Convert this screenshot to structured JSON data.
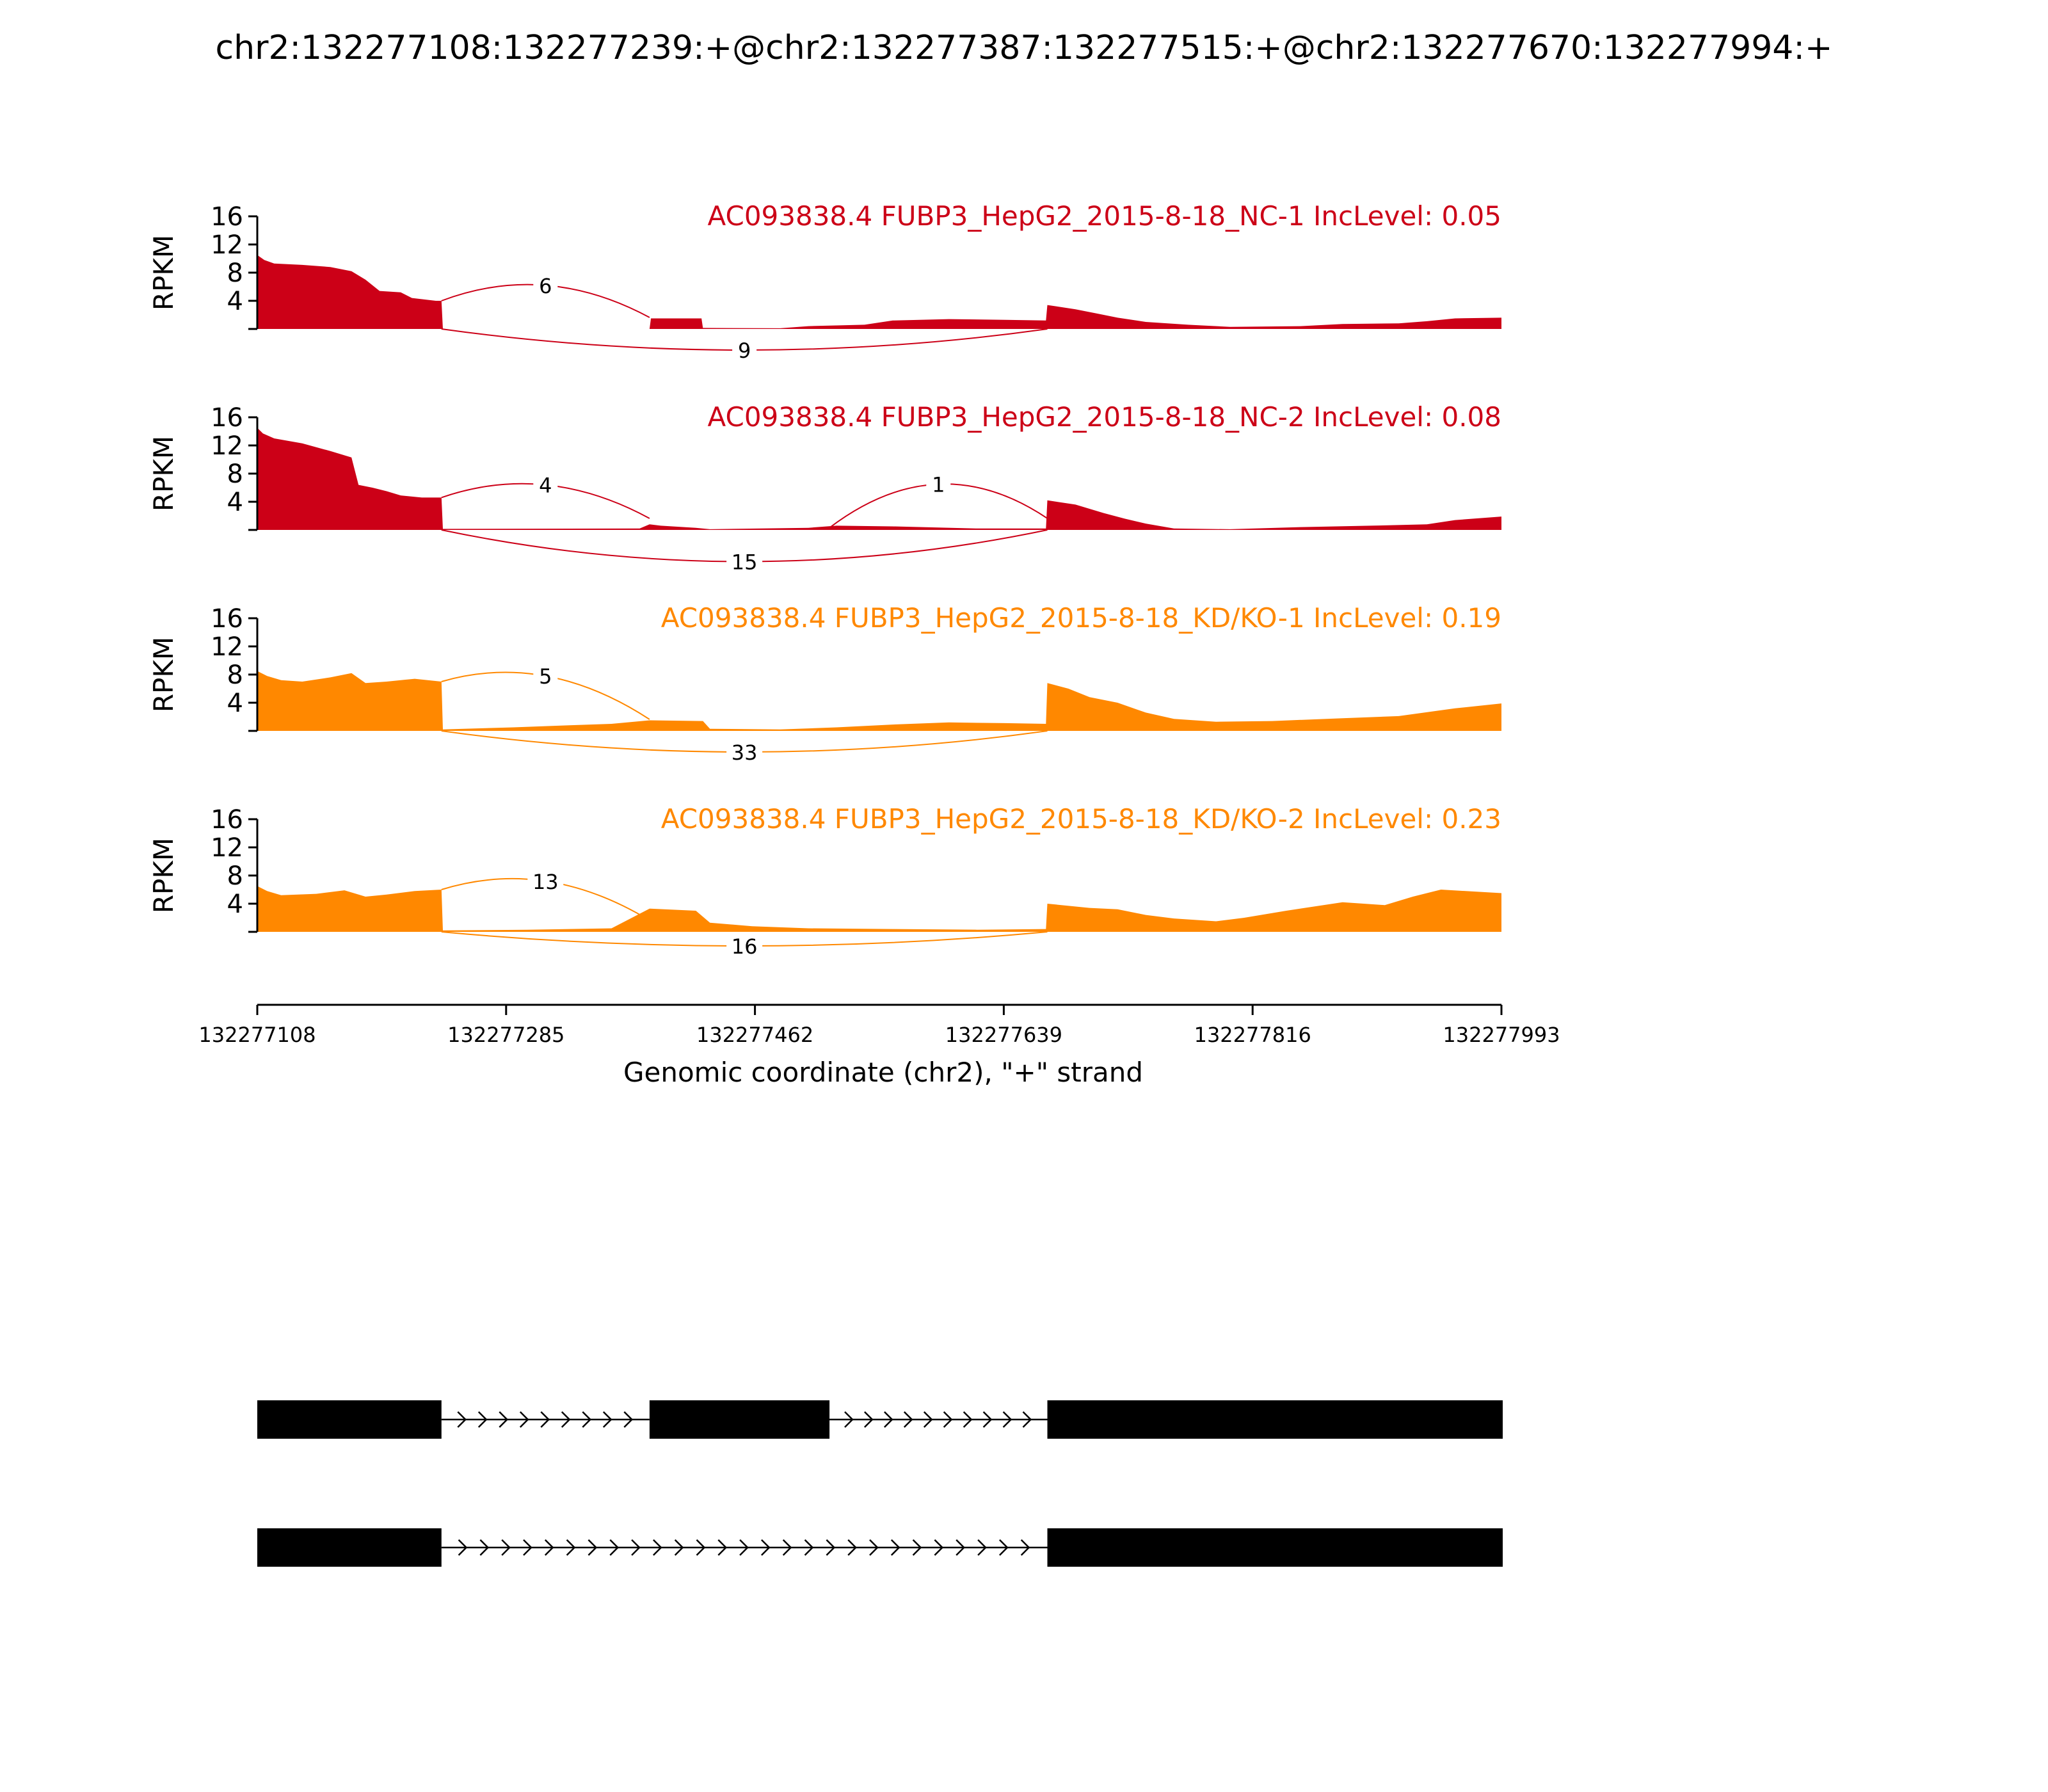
{
  "chart_data": {
    "type": "area",
    "title": "chr2:132277108:132277239:+@chr2:132277387:132277515:+@chr2:132277670:132277994:+",
    "ylabel": "RPKM",
    "xlabel": "Genomic coordinate (chr2), \"+\" strand",
    "xlim": [
      132277108,
      132277993
    ],
    "ylim": [
      0,
      16
    ],
    "yticks": [
      "4",
      "8",
      "12",
      "16"
    ],
    "xticks": [
      "132277108",
      "132277285",
      "132277462",
      "132277639",
      "132277816",
      "132277993"
    ],
    "colors": {
      "nc": "#cc0017",
      "kd": "#ff8800"
    },
    "tracks": [
      {
        "label": "AC093838.4 FUBP3_HepG2_2015-8-18_NC-1 IncLevel: 0.05",
        "group": "nc",
        "profile": [
          [
            132277108,
            10.5
          ],
          [
            132277113,
            9.8
          ],
          [
            132277120,
            9.3
          ],
          [
            132277140,
            9.1
          ],
          [
            132277160,
            8.8
          ],
          [
            132277175,
            8.2
          ],
          [
            132277185,
            7.0
          ],
          [
            132277195,
            5.4
          ],
          [
            132277210,
            5.2
          ],
          [
            132277218,
            4.4
          ],
          [
            132277235,
            4.0
          ],
          [
            132277239,
            4.0
          ],
          [
            132277240,
            0
          ],
          [
            132277387,
            0
          ],
          [
            132277388,
            1.5
          ],
          [
            132277424,
            1.5
          ],
          [
            132277425,
            0.15
          ],
          [
            132277480,
            0.1
          ],
          [
            132277500,
            0.4
          ],
          [
            132277540,
            0.6
          ],
          [
            132277560,
            1.2
          ],
          [
            132277600,
            1.4
          ],
          [
            132277640,
            1.3
          ],
          [
            132277669,
            1.2
          ],
          [
            132277670,
            3.4
          ],
          [
            132277690,
            2.8
          ],
          [
            132277705,
            2.2
          ],
          [
            132277720,
            1.6
          ],
          [
            132277740,
            1.0
          ],
          [
            132277770,
            0.6
          ],
          [
            132277800,
            0.3
          ],
          [
            132277850,
            0.4
          ],
          [
            132277880,
            0.7
          ],
          [
            132277920,
            0.8
          ],
          [
            132277940,
            1.1
          ],
          [
            132277960,
            1.5
          ],
          [
            132277993,
            1.6
          ]
        ],
        "junctions": [
          {
            "label": "6",
            "from": 132277239,
            "to": 132277387,
            "side": "above",
            "height": 6.2
          },
          {
            "label": "9",
            "from": 132277239,
            "to": 132277670,
            "side": "below",
            "height": 3.0
          }
        ]
      },
      {
        "label": "AC093838.4 FUBP3_HepG2_2015-8-18_NC-2 IncLevel: 0.08",
        "group": "nc",
        "profile": [
          [
            132277108,
            14.5
          ],
          [
            132277112,
            13.7
          ],
          [
            132277120,
            13.0
          ],
          [
            132277140,
            12.3
          ],
          [
            132277160,
            11.2
          ],
          [
            132277175,
            10.3
          ],
          [
            132277180,
            6.4
          ],
          [
            132277190,
            6.0
          ],
          [
            132277200,
            5.5
          ],
          [
            132277210,
            4.9
          ],
          [
            132277225,
            4.6
          ],
          [
            132277239,
            4.6
          ],
          [
            132277240,
            0.15
          ],
          [
            132277380,
            0.2
          ],
          [
            132277387,
            0.8
          ],
          [
            132277395,
            0.6
          ],
          [
            132277420,
            0.3
          ],
          [
            132277430,
            0.1
          ],
          [
            132277500,
            0.3
          ],
          [
            132277520,
            0.6
          ],
          [
            132277560,
            0.5
          ],
          [
            132277620,
            0.2
          ],
          [
            132277669,
            0.2
          ],
          [
            132277670,
            4.2
          ],
          [
            132277690,
            3.6
          ],
          [
            132277710,
            2.4
          ],
          [
            132277725,
            1.6
          ],
          [
            132277740,
            0.9
          ],
          [
            132277760,
            0.2
          ],
          [
            132277800,
            0.1
          ],
          [
            132277850,
            0.4
          ],
          [
            132277900,
            0.6
          ],
          [
            132277940,
            0.8
          ],
          [
            132277960,
            1.4
          ],
          [
            132277993,
            1.9
          ]
        ],
        "junctions": [
          {
            "label": "4",
            "from": 132277239,
            "to": 132277387,
            "side": "above",
            "height": 6.4
          },
          {
            "label": "1",
            "from": 132277515,
            "to": 132277670,
            "side": "above",
            "height": 6.5
          },
          {
            "label": "15",
            "from": 132277239,
            "to": 132277670,
            "side": "below",
            "height": 4.5
          }
        ]
      },
      {
        "label": "AC093838.4 FUBP3_HepG2_2015-8-18_KD/KO-1 IncLevel: 0.19",
        "group": "kd",
        "profile": [
          [
            132277108,
            8.5
          ],
          [
            132277115,
            7.8
          ],
          [
            132277125,
            7.2
          ],
          [
            132277140,
            7.0
          ],
          [
            132277160,
            7.6
          ],
          [
            132277175,
            8.2
          ],
          [
            132277185,
            6.8
          ],
          [
            132277200,
            7.0
          ],
          [
            132277220,
            7.4
          ],
          [
            132277239,
            7.0
          ],
          [
            132277240,
            0.2
          ],
          [
            132277255,
            0.3
          ],
          [
            132277290,
            0.5
          ],
          [
            132277330,
            0.8
          ],
          [
            132277360,
            1.0
          ],
          [
            132277387,
            1.5
          ],
          [
            132277425,
            1.4
          ],
          [
            132277430,
            0.3
          ],
          [
            132277480,
            0.2
          ],
          [
            132277520,
            0.5
          ],
          [
            132277560,
            0.9
          ],
          [
            132277600,
            1.2
          ],
          [
            132277640,
            1.1
          ],
          [
            132277669,
            1.0
          ],
          [
            132277670,
            6.8
          ],
          [
            132277685,
            6.0
          ],
          [
            132277700,
            4.8
          ],
          [
            132277720,
            4.0
          ],
          [
            132277740,
            2.6
          ],
          [
            132277760,
            1.7
          ],
          [
            132277790,
            1.3
          ],
          [
            132277830,
            1.4
          ],
          [
            132277880,
            1.8
          ],
          [
            132277920,
            2.1
          ],
          [
            132277960,
            3.2
          ],
          [
            132277993,
            3.9
          ]
        ],
        "junctions": [
          {
            "label": "5",
            "from": 132277239,
            "to": 132277387,
            "side": "above",
            "height": 7.8
          },
          {
            "label": "33",
            "from": 132277239,
            "to": 132277670,
            "side": "below",
            "height": 3.0
          }
        ]
      },
      {
        "label": "AC093838.4 FUBP3_HepG2_2015-8-18_KD/KO-2 IncLevel: 0.23",
        "group": "kd",
        "profile": [
          [
            132277108,
            6.5
          ],
          [
            132277115,
            5.8
          ],
          [
            132277125,
            5.2
          ],
          [
            132277150,
            5.4
          ],
          [
            132277170,
            5.9
          ],
          [
            132277185,
            5.0
          ],
          [
            132277200,
            5.3
          ],
          [
            132277220,
            5.8
          ],
          [
            132277239,
            6.0
          ],
          [
            132277240,
            0.2
          ],
          [
            132277300,
            0.3
          ],
          [
            132277360,
            0.5
          ],
          [
            132277387,
            3.3
          ],
          [
            132277420,
            3.0
          ],
          [
            132277430,
            1.3
          ],
          [
            132277460,
            0.8
          ],
          [
            132277500,
            0.5
          ],
          [
            132277560,
            0.4
          ],
          [
            132277620,
            0.3
          ],
          [
            132277669,
            0.4
          ],
          [
            132277670,
            4.0
          ],
          [
            132277700,
            3.4
          ],
          [
            132277720,
            3.2
          ],
          [
            132277740,
            2.4
          ],
          [
            132277760,
            1.9
          ],
          [
            132277790,
            1.5
          ],
          [
            132277810,
            2.0
          ],
          [
            132277840,
            3.0
          ],
          [
            132277880,
            4.2
          ],
          [
            132277910,
            3.8
          ],
          [
            132277930,
            5.0
          ],
          [
            132277950,
            6.0
          ],
          [
            132277993,
            5.5
          ]
        ],
        "junctions": [
          {
            "label": "13",
            "from": 132277239,
            "to": 132277387,
            "side": "above",
            "height": 7.2
          },
          {
            "label": "16",
            "from": 132277239,
            "to": 132277670,
            "side": "below",
            "height": 2.0
          }
        ]
      }
    ],
    "isoforms": [
      {
        "exons": [
          [
            132277108,
            132277239
          ],
          [
            132277387,
            132277515
          ],
          [
            132277670,
            132277994
          ]
        ]
      },
      {
        "exons": [
          [
            132277108,
            132277239
          ],
          [
            132277670,
            132277994
          ]
        ]
      }
    ]
  }
}
